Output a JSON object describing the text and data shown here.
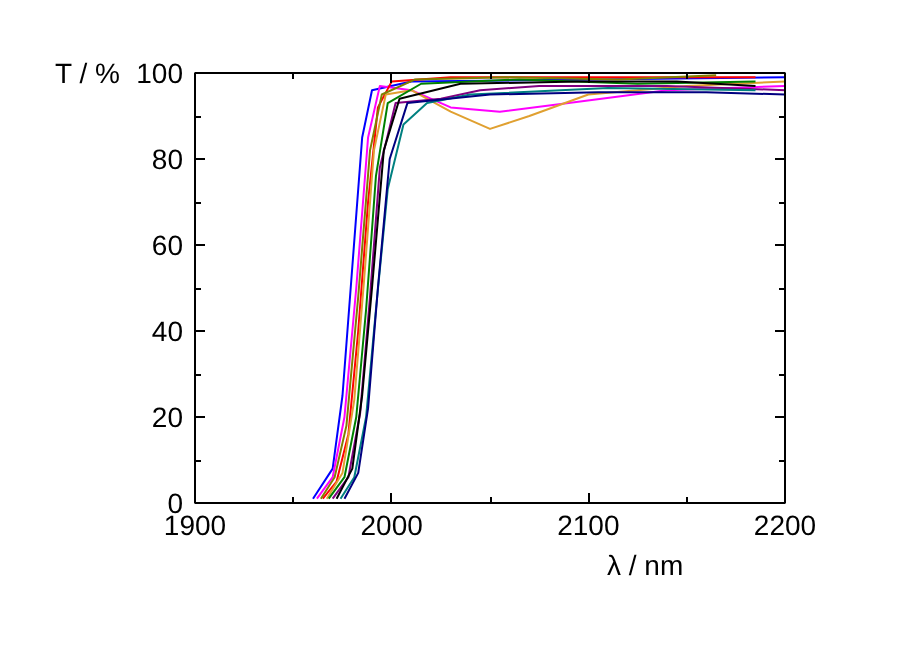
{
  "chart_data": {
    "type": "line",
    "xlabel": "λ / nm",
    "ylabel": "T / %",
    "xlim": [
      1900,
      2200
    ],
    "xticks": [
      1900,
      2000,
      2100,
      2200
    ],
    "ylim": [
      0,
      100
    ],
    "yticks": [
      0,
      20,
      40,
      60,
      80,
      100
    ],
    "grid": false,
    "marker": "none",
    "line_style": "solid",
    "series": [
      {
        "color": "#0000ff",
        "x": [
          1960,
          1970,
          1975,
          1980,
          1985,
          1990,
          2010,
          2200
        ],
        "values": [
          1,
          8,
          25,
          55,
          85,
          96,
          98,
          99
        ]
      },
      {
        "color": "#ff00ff",
        "x": [
          1962,
          1970,
          1976,
          1982,
          1988,
          1994,
          2010,
          2030,
          2055,
          2090,
          2140,
          2200
        ],
        "values": [
          1,
          6,
          20,
          50,
          85,
          97,
          96,
          92,
          91,
          93,
          96,
          97
        ]
      },
      {
        "color": "#ff0000",
        "x": [
          1965,
          1972,
          1978,
          1983,
          1988,
          1993,
          2000,
          2030,
          2130,
          2185
        ],
        "values": [
          1,
          5,
          16,
          40,
          70,
          92,
          98,
          99,
          99,
          99
        ]
      },
      {
        "color": "#e0a030",
        "x": [
          1967,
          1975,
          1981,
          1986,
          1991,
          1997,
          2010,
          2030,
          2050,
          2070,
          2100,
          2150,
          2200
        ],
        "values": [
          1,
          7,
          24,
          52,
          82,
          95,
          96,
          91,
          87,
          90,
          95,
          97,
          98
        ]
      },
      {
        "color": "#008000",
        "x": [
          1968,
          1976,
          1982,
          1987,
          1992,
          1998,
          2015,
          2065,
          2125,
          2185
        ],
        "values": [
          1,
          6,
          20,
          45,
          76,
          93,
          97.5,
          98.5,
          97.5,
          98
        ]
      },
      {
        "color": "#800080",
        "x": [
          1970,
          1978,
          1984,
          1989,
          1994,
          2002,
          2025,
          2045,
          2075,
          2140,
          2200
        ],
        "values": [
          1,
          6,
          21,
          48,
          78,
          93,
          94,
          96,
          97,
          97,
          96
        ]
      },
      {
        "color": "#000000",
        "x": [
          1972,
          1980,
          1985,
          1990,
          1996,
          2004,
          2035,
          2095,
          2145,
          2185
        ],
        "values": [
          1,
          8,
          25,
          50,
          82,
          94,
          97.5,
          98,
          98,
          97
        ]
      },
      {
        "color": "#008080",
        "x": [
          1974,
          1981,
          1987,
          1992,
          1998,
          2006,
          2018,
          2040,
          2110,
          2185
        ],
        "values": [
          1,
          6,
          20,
          45,
          73,
          88,
          93,
          95,
          96.5,
          96
        ]
      },
      {
        "color": "#000080",
        "x": [
          1976,
          1983,
          1988,
          1993,
          1999,
          2008,
          2050,
          2105,
          2160,
          2200
        ],
        "values": [
          1,
          7,
          22,
          50,
          80,
          93,
          95,
          95.5,
          95.5,
          95
        ]
      },
      {
        "color": "#808000",
        "x": [
          1964,
          1971,
          1977,
          1983,
          1989,
          1995,
          2012,
          2058,
          2115,
          2165
        ],
        "values": [
          1,
          6,
          18,
          48,
          82,
          95,
          98.5,
          99,
          98.5,
          99.5
        ]
      }
    ]
  }
}
